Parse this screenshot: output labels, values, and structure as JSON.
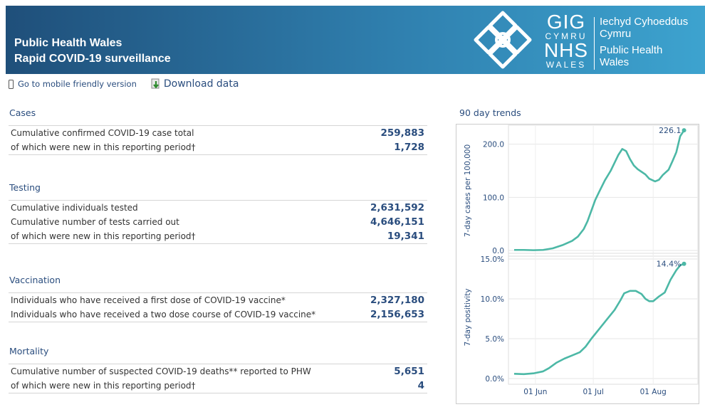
{
  "header": {
    "title_line1": "Public Health Wales",
    "title_line2": "Rapid COVID-19 surveillance",
    "logo_gig": "GIG",
    "logo_cymru": "CYMRU",
    "logo_nhs": "NHS",
    "logo_wales": "WALES",
    "logo_right1": "Iechyd Cyhoeddus",
    "logo_right2": "Cymru",
    "logo_right3": "Public Health",
    "logo_right4": "Wales"
  },
  "toolbar": {
    "mobile_label": "Go to mobile friendly version",
    "download_label": "Download data"
  },
  "sections": {
    "cases": {
      "title": "Cases",
      "rows": [
        {
          "label": "Cumulative confirmed COVID-19 case total",
          "value": "259,883"
        },
        {
          "label": "of which were new in this reporting period†",
          "value": "1,728"
        }
      ]
    },
    "testing": {
      "title": "Testing",
      "rows": [
        {
          "label": "Cumulative individuals tested",
          "value": "2,631,592"
        },
        {
          "label": "Cumulative number of tests carried out",
          "value": "4,646,151"
        },
        {
          "label": "of which were new in this reporting period†",
          "value": "19,341"
        }
      ]
    },
    "vaccination": {
      "title": "Vaccination",
      "rows": [
        {
          "label": "Individuals who have received a first dose of COVID-19 vaccine*",
          "value": "2,327,180"
        },
        {
          "label": "Individuals who have received a two dose course of COVID-19 vaccine*",
          "value": "2,156,653"
        }
      ]
    },
    "mortality": {
      "title": "Mortality",
      "rows": [
        {
          "label": "Cumulative number of suspected COVID-19 deaths** reported to PHW",
          "value": "5,651"
        },
        {
          "label": "of which were new in this reporting period†",
          "value": "4"
        }
      ]
    }
  },
  "trends": {
    "title": "90 day trends"
  },
  "colors": {
    "header_dark": "#1f4f7a",
    "header_light": "#3da3cf",
    "accent_text": "#2a4d7e",
    "line": "#4cb8a6"
  },
  "chart_data": [
    {
      "type": "line",
      "ylabel": "7-day cases per 100,000",
      "ylim": [
        0,
        225
      ],
      "yticks": [
        "0.0",
        "100.0",
        "200.0"
      ],
      "ytick_values": [
        0,
        100,
        200
      ],
      "last_label": "226.1",
      "x_range_days": [
        0,
        90
      ],
      "grid": true,
      "series": [
        {
          "values": [
            [
              0,
              1
            ],
            [
              5,
              1
            ],
            [
              10,
              0.5
            ],
            [
              15,
              1
            ],
            [
              20,
              4
            ],
            [
              25,
              10
            ],
            [
              30,
              18
            ],
            [
              33,
              26
            ],
            [
              36,
              40
            ],
            [
              38,
              55
            ],
            [
              40,
              75
            ],
            [
              42,
              95
            ],
            [
              44,
              110
            ],
            [
              47,
              132
            ],
            [
              50,
              150
            ],
            [
              52,
              165
            ],
            [
              54,
              180
            ],
            [
              56,
              191
            ],
            [
              58,
              187
            ],
            [
              60,
              172
            ],
            [
              62,
              160
            ],
            [
              64,
              153
            ],
            [
              66,
              148
            ],
            [
              68,
              143
            ],
            [
              70,
              135
            ],
            [
              73,
              130
            ],
            [
              75,
              133
            ],
            [
              77,
              142
            ],
            [
              80,
              152
            ],
            [
              82,
              168
            ],
            [
              84,
              185
            ],
            [
              86,
              215
            ],
            [
              88,
              226.1
            ]
          ]
        }
      ]
    },
    {
      "type": "line",
      "ylabel": "7-day positivity",
      "ylim": [
        0,
        15
      ],
      "yticks": [
        "0.0%",
        "5.0%",
        "10.0%",
        "15.0%"
      ],
      "ytick_values": [
        0,
        5,
        10,
        15
      ],
      "xticks": [
        "01 Jun",
        "01 Jul",
        "01 Aug"
      ],
      "xtick_values": [
        11,
        41,
        72
      ],
      "last_label": "14.4%",
      "x_range_days": [
        0,
        90
      ],
      "grid": true,
      "series": [
        {
          "values": [
            [
              0,
              0.6
            ],
            [
              5,
              0.55
            ],
            [
              10,
              0.65
            ],
            [
              15,
              0.9
            ],
            [
              18,
              1.3
            ],
            [
              22,
              2
            ],
            [
              26,
              2.5
            ],
            [
              30,
              2.9
            ],
            [
              34,
              3.3
            ],
            [
              37,
              4
            ],
            [
              40,
              5
            ],
            [
              44,
              6.2
            ],
            [
              48,
              7.4
            ],
            [
              52,
              8.6
            ],
            [
              55,
              9.8
            ],
            [
              57,
              10.7
            ],
            [
              60,
              11
            ],
            [
              63,
              11
            ],
            [
              66,
              10.6
            ],
            [
              68,
              10
            ],
            [
              70,
              9.7
            ],
            [
              72,
              9.7
            ],
            [
              75,
              10.3
            ],
            [
              78,
              10.8
            ],
            [
              81,
              12.4
            ],
            [
              84,
              13.6
            ],
            [
              86,
              14.2
            ],
            [
              88,
              14.4
            ]
          ]
        }
      ]
    }
  ]
}
